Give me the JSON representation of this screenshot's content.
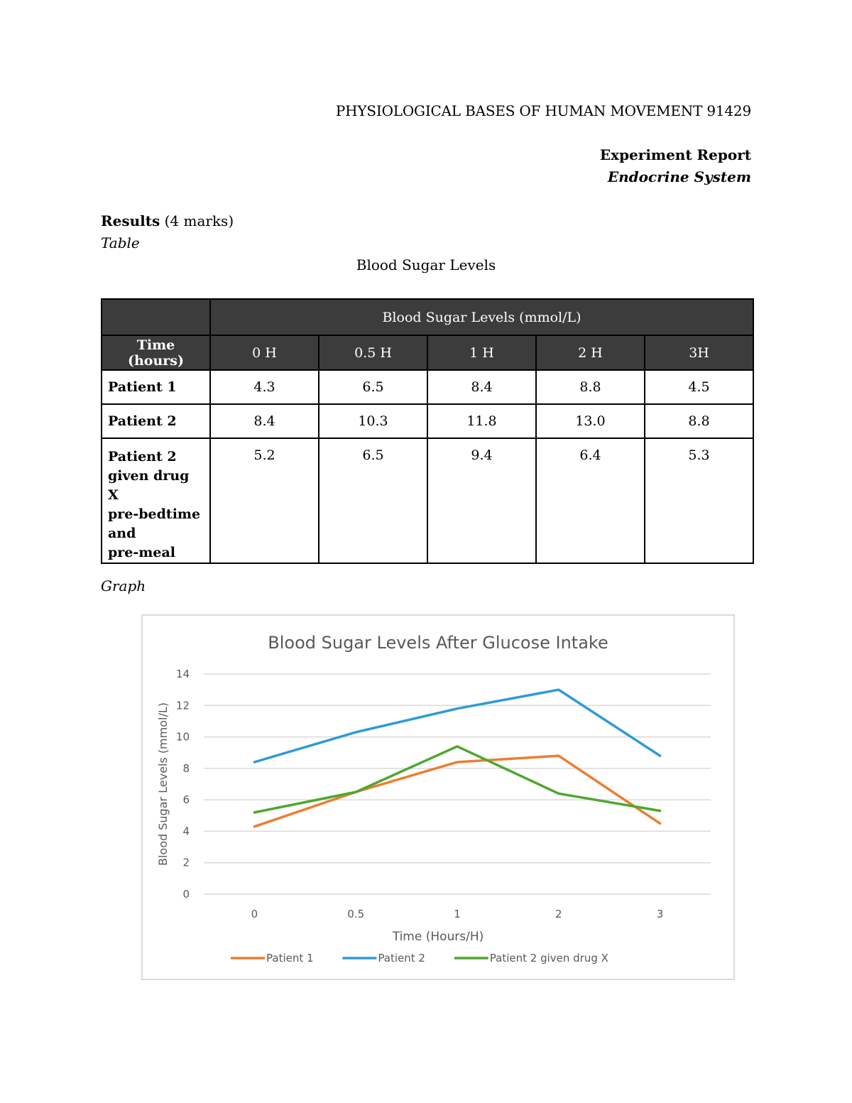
{
  "header": {
    "course": "PHYSIOLOGICAL BASES OF HUMAN MOVEMENT 91429",
    "report_title": "Experiment Report",
    "system": "Endocrine System"
  },
  "results": {
    "heading": "Results",
    "marks": " (4 marks)",
    "table_label": "Table",
    "table_caption": "Blood Sugar Levels",
    "graph_label": "Graph"
  },
  "table": {
    "group_header": "Blood Sugar Levels (mmol/L)",
    "time_header": "Time (hours)",
    "columns": [
      "0 H",
      "0.5 H",
      "1 H",
      "2 H",
      "3H"
    ],
    "rows": [
      {
        "label": [
          "Patient 1"
        ],
        "values": [
          "4.3",
          "6.5",
          "8.4",
          "8.8",
          "4.5"
        ]
      },
      {
        "label": [
          "Patient 2"
        ],
        "values": [
          "8.4",
          "10.3",
          "11.8",
          "13.0",
          "8.8"
        ]
      },
      {
        "label": [
          "Patient 2",
          "given drug X",
          "pre-bedtime",
          "and",
          "pre-meal"
        ],
        "values": [
          "5.2",
          "6.5",
          "9.4",
          "6.4",
          "5.3"
        ]
      }
    ]
  },
  "chart_data": {
    "type": "line",
    "title": "Blood Sugar Levels After Glucose Intake",
    "xlabel": "Time (Hours/H)",
    "ylabel": "Blood Sugar Levels (mmol/L)",
    "categories": [
      "0",
      "0.5",
      "1",
      "2",
      "3"
    ],
    "ylim": [
      0,
      14
    ],
    "yticks": [
      0,
      2,
      4,
      6,
      8,
      10,
      12,
      14
    ],
    "grid": true,
    "legend": "bottom",
    "series": [
      {
        "name": "Patient 1",
        "color": "#ed7d31",
        "values": [
          4.3,
          6.5,
          8.4,
          8.8,
          4.5
        ]
      },
      {
        "name": "Patient 2",
        "color": "#2e9bd6",
        "values": [
          8.4,
          10.3,
          11.8,
          13.0,
          8.8
        ]
      },
      {
        "name": "Patient 2 given drug X",
        "color": "#4ea72e",
        "values": [
          5.2,
          6.5,
          9.4,
          6.4,
          5.3
        ]
      }
    ]
  }
}
